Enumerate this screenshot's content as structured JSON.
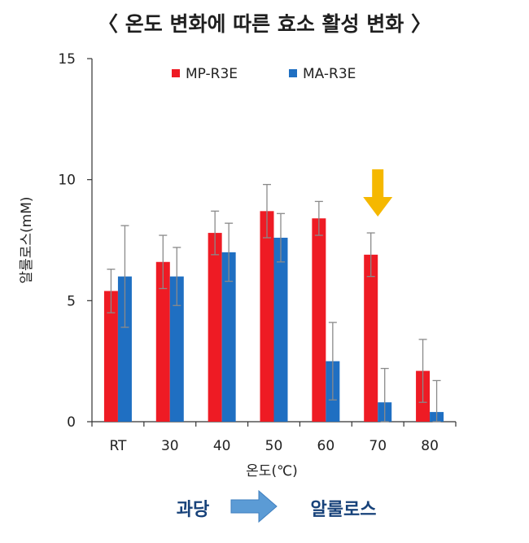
{
  "title": "〈 온도 변화에 따른 효소 활성 변화 〉",
  "colors": {
    "series_1": "#ee1b24",
    "series_2": "#1f6fc2",
    "error_bar": "#8a8a8a",
    "highlight_arrow": "#f5b800",
    "flow_arrow": "#5b9bd5",
    "flow_text": "#17427a"
  },
  "chart_data": {
    "type": "bar",
    "title": "〈 온도 변화에 따른 효소 활성 변화 〉",
    "xlabel": "온도(℃)",
    "ylabel": "알룰로스(mM)",
    "categories": [
      "RT",
      "30",
      "40",
      "50",
      "60",
      "70",
      "80"
    ],
    "yticks": [
      0,
      5,
      10,
      15
    ],
    "ylim": [
      0,
      15
    ],
    "grid": false,
    "legend_position": "top-center",
    "series": [
      {
        "name": "MP-R3E",
        "values": [
          5.4,
          6.6,
          7.8,
          8.7,
          8.4,
          6.9,
          2.1
        ],
        "errors": [
          0.9,
          1.1,
          0.9,
          1.1,
          0.7,
          0.9,
          1.3
        ]
      },
      {
        "name": "MA-R3E",
        "values": [
          6.0,
          6.0,
          7.0,
          7.6,
          2.5,
          0.8,
          0.4
        ],
        "errors": [
          2.1,
          1.2,
          1.2,
          1.0,
          1.6,
          1.4,
          1.3
        ]
      }
    ],
    "annotation": {
      "icon": "down-arrow-icon",
      "category": "70"
    }
  },
  "flow": {
    "from": "과당",
    "to": "알룰로스",
    "icon": "right-arrow-icon"
  }
}
